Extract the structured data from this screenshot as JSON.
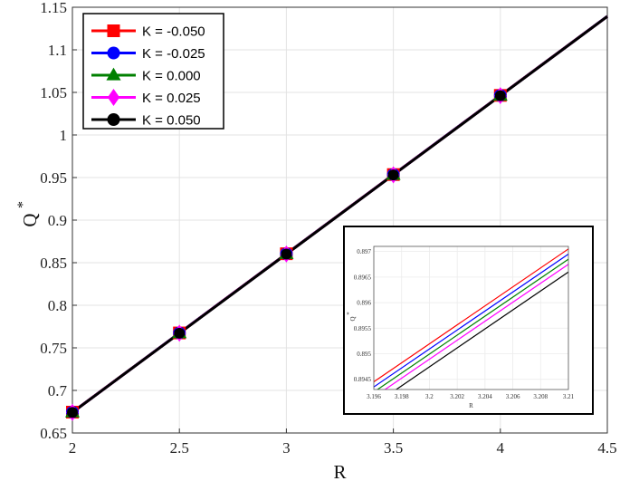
{
  "chart_data": {
    "type": "line",
    "xlabel": "R",
    "ylabel": "Q",
    "ylabel_superscript": "*",
    "xlim": [
      2,
      4.5
    ],
    "ylim": [
      0.65,
      1.15
    ],
    "xticks": [
      "2",
      "2.5",
      "3",
      "3.5",
      "4",
      "4.5"
    ],
    "yticks": [
      "0.65",
      "0.7",
      "0.75",
      "0.8",
      "0.85",
      "0.9",
      "0.95",
      "1",
      "1.05",
      "1.1",
      "1.15"
    ],
    "grid": true,
    "legend_position": "top-left",
    "x": [
      2,
      2.5,
      3,
      3.5,
      4,
      4.5
    ],
    "marker_x": [
      2,
      2.5,
      3,
      3.5,
      4
    ],
    "series": [
      {
        "name": "K = -0.050",
        "color": "#ff0000",
        "marker": "square",
        "values": [
          0.6745,
          0.7675,
          0.8605,
          0.9535,
          1.0465,
          1.1395
        ]
      },
      {
        "name": "K = -0.025",
        "color": "#0000ff",
        "marker": "circle",
        "values": [
          0.6744,
          0.7674,
          0.8604,
          0.9534,
          1.0464,
          1.1394
        ]
      },
      {
        "name": "K = 0.000",
        "color": "#008000",
        "marker": "triangle",
        "values": [
          0.6743,
          0.7673,
          0.8603,
          0.9533,
          1.0463,
          1.1393
        ]
      },
      {
        "name": "K = 0.025",
        "color": "#ff00ff",
        "marker": "diamond",
        "values": [
          0.6742,
          0.7672,
          0.8602,
          0.9532,
          1.0462,
          1.1392
        ]
      },
      {
        "name": "K = 0.050",
        "color": "#000000",
        "marker": "circle",
        "values": [
          0.6741,
          0.7671,
          0.8601,
          0.9531,
          1.0461,
          1.1391
        ]
      }
    ],
    "inset": {
      "xlabel": "R",
      "ylabel": "Q",
      "ylabel_superscript": "*",
      "xlim": [
        3.196,
        3.21
      ],
      "ylim": [
        0.8943,
        0.8971
      ],
      "xticks": [
        "3.196",
        "3.198",
        "3.2",
        "3.202",
        "3.204",
        "3.206",
        "3.208",
        "3.21"
      ],
      "yticks": [
        "0.8945",
        "0.895",
        "0.8955",
        "0.896",
        "0.8965",
        "0.897"
      ],
      "series_lines": [
        {
          "color": "#ff0000",
          "x": [
            3.196,
            3.21
          ],
          "y": [
            0.89445,
            0.89705
          ]
        },
        {
          "color": "#0000ff",
          "x": [
            3.196,
            3.21
          ],
          "y": [
            0.89435,
            0.89695
          ]
        },
        {
          "color": "#008000",
          "x": [
            3.196,
            3.21
          ],
          "y": [
            0.89425,
            0.89685
          ]
        },
        {
          "color": "#ff00ff",
          "x": [
            3.196,
            3.21
          ],
          "y": [
            0.89415,
            0.89675
          ]
        },
        {
          "color": "#000000",
          "x": [
            3.196,
            3.21
          ],
          "y": [
            0.894,
            0.8966
          ]
        }
      ]
    }
  }
}
